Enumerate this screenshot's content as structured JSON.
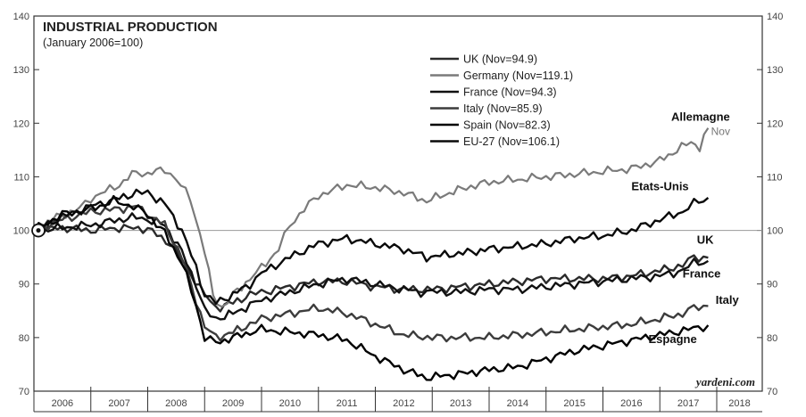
{
  "chart_data": {
    "type": "line",
    "title": "INDUSTRIAL PRODUCTION",
    "subtitle": "(January 2006=100)",
    "ylim": [
      70,
      140
    ],
    "y_ticks": [
      "70",
      "80",
      "90",
      "100",
      "110",
      "120",
      "130",
      "140"
    ],
    "x_ticks": [
      "2006",
      "2007",
      "2008",
      "2009",
      "2010",
      "2011",
      "2012",
      "2013",
      "2014",
      "2015",
      "2016",
      "2017",
      "2018"
    ],
    "reference_line": 100,
    "legend": [
      "UK (Nov=94.9)",
      "Germany (Nov=119.1)",
      "France (Nov=94.3)",
      "Italy (Nov=85.9)",
      "Spain (Nov=82.3)",
      "EU-27 (Nov=106.1)"
    ],
    "credit": "yardeni.com",
    "series": [
      {
        "id": "uk",
        "name": "UK (Nov=94.9)",
        "color": "#2a2a2a",
        "points": [
          [
            2006.0,
            100
          ],
          [
            2006.5,
            100.5
          ],
          [
            2007.0,
            100
          ],
          [
            2007.5,
            100.5
          ],
          [
            2008.0,
            100.3
          ],
          [
            2008.4,
            97.5
          ],
          [
            2008.75,
            92
          ],
          [
            2009.0,
            88
          ],
          [
            2009.2,
            85.5
          ],
          [
            2009.5,
            86.5
          ],
          [
            2009.8,
            88
          ],
          [
            2010.0,
            88.5
          ],
          [
            2010.5,
            89.5
          ],
          [
            2011.0,
            90.5
          ],
          [
            2011.5,
            90.5
          ],
          [
            2012.0,
            89.5
          ],
          [
            2012.5,
            89
          ],
          [
            2013.0,
            89
          ],
          [
            2013.5,
            89.5
          ],
          [
            2014.0,
            90
          ],
          [
            2014.5,
            90.5
          ],
          [
            2015.0,
            91
          ],
          [
            2015.5,
            91
          ],
          [
            2016.0,
            91
          ],
          [
            2016.5,
            91.5
          ],
          [
            2017.0,
            92.5
          ],
          [
            2017.4,
            93.5
          ],
          [
            2017.6,
            95
          ],
          [
            2017.85,
            94.9
          ]
        ]
      },
      {
        "id": "germany",
        "name": "Germany (Nov=119.1)",
        "color": "#7a7a7a",
        "points": [
          [
            2006.0,
            100
          ],
          [
            2006.4,
            102.5
          ],
          [
            2006.8,
            104
          ],
          [
            2007.0,
            106
          ],
          [
            2007.5,
            108.5
          ],
          [
            2007.8,
            111
          ],
          [
            2008.0,
            110.5
          ],
          [
            2008.3,
            111.5
          ],
          [
            2008.5,
            109.5
          ],
          [
            2008.75,
            106
          ],
          [
            2009.0,
            96
          ],
          [
            2009.15,
            88
          ],
          [
            2009.3,
            85.5
          ],
          [
            2009.5,
            88
          ],
          [
            2009.8,
            91
          ],
          [
            2010.0,
            93
          ],
          [
            2010.3,
            96.5
          ],
          [
            2010.5,
            101
          ],
          [
            2010.75,
            104
          ],
          [
            2011.0,
            106.5
          ],
          [
            2011.5,
            108.5
          ],
          [
            2012.0,
            108
          ],
          [
            2012.5,
            107
          ],
          [
            2012.9,
            105.5
          ],
          [
            2013.3,
            107
          ],
          [
            2013.6,
            108
          ],
          [
            2014.0,
            109
          ],
          [
            2014.5,
            109.5
          ],
          [
            2015.0,
            110
          ],
          [
            2015.5,
            110.5
          ],
          [
            2016.0,
            111
          ],
          [
            2016.5,
            111.5
          ],
          [
            2017.0,
            113
          ],
          [
            2017.3,
            115
          ],
          [
            2017.55,
            116.5
          ],
          [
            2017.7,
            115.5
          ],
          [
            2017.85,
            119.1
          ]
        ]
      },
      {
        "id": "france",
        "name": "France (Nov=94.3)",
        "color": "#111111",
        "points": [
          [
            2006.0,
            100
          ],
          [
            2006.5,
            100.5
          ],
          [
            2007.0,
            101
          ],
          [
            2007.5,
            102
          ],
          [
            2007.8,
            102.5
          ],
          [
            2008.0,
            102
          ],
          [
            2008.3,
            101
          ],
          [
            2008.6,
            96
          ],
          [
            2008.85,
            90
          ],
          [
            2009.0,
            85
          ],
          [
            2009.2,
            83.5
          ],
          [
            2009.5,
            84.5
          ],
          [
            2009.8,
            86
          ],
          [
            2010.0,
            87
          ],
          [
            2010.5,
            88.5
          ],
          [
            2011.0,
            90
          ],
          [
            2011.5,
            91
          ],
          [
            2012.0,
            90
          ],
          [
            2012.5,
            89
          ],
          [
            2012.8,
            88.5
          ],
          [
            2013.0,
            88.5
          ],
          [
            2013.5,
            88.5
          ],
          [
            2014.0,
            89
          ],
          [
            2014.5,
            89
          ],
          [
            2015.0,
            89.5
          ],
          [
            2015.5,
            90
          ],
          [
            2016.0,
            90.5
          ],
          [
            2016.5,
            91
          ],
          [
            2017.0,
            91.5
          ],
          [
            2017.4,
            92.5
          ],
          [
            2017.6,
            94
          ],
          [
            2017.85,
            94.3
          ]
        ]
      },
      {
        "id": "italy",
        "name": "Italy (Nov=85.9)",
        "color": "#3c3c3c",
        "points": [
          [
            2006.0,
            100
          ],
          [
            2006.5,
            102
          ],
          [
            2007.0,
            103.5
          ],
          [
            2007.5,
            104
          ],
          [
            2007.8,
            104.5
          ],
          [
            2008.0,
            103
          ],
          [
            2008.3,
            101
          ],
          [
            2008.6,
            95
          ],
          [
            2008.85,
            87
          ],
          [
            2009.0,
            82
          ],
          [
            2009.2,
            80
          ],
          [
            2009.5,
            81
          ],
          [
            2009.8,
            82.5
          ],
          [
            2010.0,
            83.5
          ],
          [
            2010.5,
            84.5
          ],
          [
            2011.0,
            85.5
          ],
          [
            2011.5,
            84.5
          ],
          [
            2012.0,
            82.5
          ],
          [
            2012.5,
            80.5
          ],
          [
            2013.0,
            80
          ],
          [
            2013.5,
            80
          ],
          [
            2014.0,
            80
          ],
          [
            2014.5,
            80.5
          ],
          [
            2015.0,
            81
          ],
          [
            2015.5,
            81.5
          ],
          [
            2016.0,
            82
          ],
          [
            2016.5,
            82.5
          ],
          [
            2017.0,
            83.5
          ],
          [
            2017.4,
            84.5
          ],
          [
            2017.6,
            85.5
          ],
          [
            2017.85,
            85.9
          ]
        ]
      },
      {
        "id": "spain",
        "name": "Spain (Nov=82.3)",
        "color": "#000000",
        "points": [
          [
            2006.0,
            100
          ],
          [
            2006.5,
            103
          ],
          [
            2007.0,
            104
          ],
          [
            2007.4,
            105.5
          ],
          [
            2007.75,
            104.5
          ],
          [
            2008.0,
            103
          ],
          [
            2008.3,
            99.5
          ],
          [
            2008.6,
            94
          ],
          [
            2008.85,
            86
          ],
          [
            2009.0,
            80
          ],
          [
            2009.2,
            79
          ],
          [
            2009.5,
            80
          ],
          [
            2009.8,
            81
          ],
          [
            2010.0,
            81.5
          ],
          [
            2010.5,
            81
          ],
          [
            2011.0,
            80.5
          ],
          [
            2011.5,
            79.5
          ],
          [
            2012.0,
            76.5
          ],
          [
            2012.5,
            74
          ],
          [
            2012.9,
            72.5
          ],
          [
            2013.3,
            73
          ],
          [
            2013.7,
            73.5
          ],
          [
            2014.0,
            74
          ],
          [
            2014.5,
            74.5
          ],
          [
            2015.0,
            76
          ],
          [
            2015.5,
            77.5
          ],
          [
            2016.0,
            78.5
          ],
          [
            2016.5,
            79.5
          ],
          [
            2017.0,
            80.5
          ],
          [
            2017.5,
            81.5
          ],
          [
            2017.85,
            82.3
          ]
        ]
      },
      {
        "id": "eu27",
        "name": "EU-27 (Nov=106.1)",
        "color": "#0a0a0a",
        "points": [
          [
            2006.0,
            100
          ],
          [
            2006.5,
            102.5
          ],
          [
            2007.0,
            104.5
          ],
          [
            2007.5,
            106
          ],
          [
            2007.8,
            107
          ],
          [
            2008.0,
            107
          ],
          [
            2008.3,
            105
          ],
          [
            2008.6,
            100
          ],
          [
            2008.85,
            93
          ],
          [
            2009.0,
            88
          ],
          [
            2009.2,
            86.5
          ],
          [
            2009.5,
            88
          ],
          [
            2009.8,
            90
          ],
          [
            2010.0,
            92
          ],
          [
            2010.5,
            95
          ],
          [
            2011.0,
            97.5
          ],
          [
            2011.5,
            98.5
          ],
          [
            2012.0,
            97.5
          ],
          [
            2012.5,
            96.5
          ],
          [
            2012.9,
            95
          ],
          [
            2013.3,
            95.5
          ],
          [
            2013.7,
            96
          ],
          [
            2014.0,
            96.5
          ],
          [
            2014.5,
            97
          ],
          [
            2015.0,
            97.5
          ],
          [
            2015.5,
            98.5
          ],
          [
            2016.0,
            99
          ],
          [
            2016.5,
            100
          ],
          [
            2017.0,
            102
          ],
          [
            2017.4,
            103.5
          ],
          [
            2017.6,
            105
          ],
          [
            2017.85,
            106.1
          ]
        ]
      }
    ],
    "annotations": [
      {
        "text": "Allemagne",
        "x": 2017.2,
        "y": 120.5,
        "style": "bold"
      },
      {
        "text": "Nov",
        "x": 2017.9,
        "y": 117.8,
        "style": "small"
      },
      {
        "text": "Etats-Unis",
        "x": 2016.5,
        "y": 107.5,
        "style": "bold"
      },
      {
        "text": "UK",
        "x": 2017.65,
        "y": 97.5,
        "style": "bold"
      },
      {
        "text": "France",
        "x": 2017.4,
        "y": 91.2,
        "style": "bold"
      },
      {
        "text": "Italy",
        "x": 2017.98,
        "y": 86.3,
        "style": "bold"
      },
      {
        "text": "Espagne",
        "x": 2016.8,
        "y": 79.0,
        "style": "bold"
      }
    ]
  }
}
